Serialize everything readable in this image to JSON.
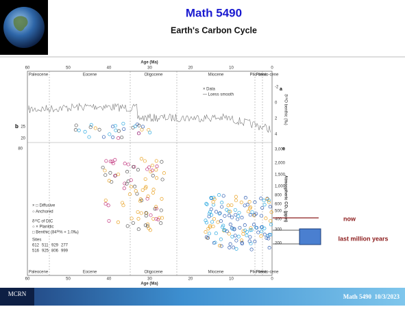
{
  "header": {
    "title": "Math 5490",
    "subtitle": "Earth's Carbon Cycle"
  },
  "figure": {
    "x_label": "Age (Ma)",
    "x_ticks": [
      "60",
      "50",
      "40",
      "30",
      "20",
      "10",
      "0"
    ],
    "epochs": [
      "Paleocene",
      "Eocene",
      "Oligocene",
      "Miocene",
      "Plio-cene",
      "Pleisto-cene"
    ],
    "panel_labels": [
      "a",
      "b",
      "e"
    ],
    "top_legend": [
      "× Data",
      "— Loess smooth"
    ],
    "top_y_label": "δ¹⁸O benthic (‰)",
    "top_y_ticks": [
      "-2",
      "0",
      "2",
      "4"
    ],
    "b_ticks": [
      "25",
      "20"
    ],
    "left_tick": "80",
    "co2_label": "Atmospheric CO₂ (ppm)",
    "co2_ticks": [
      "3,000",
      "2,000",
      "1,500",
      "1,000",
      "800",
      "600",
      "500",
      "400",
      "300",
      "200"
    ],
    "legend": [
      "× □ Diffusive",
      "○ Anchored",
      "δ¹³C of DIC",
      "○ × Planktic",
      "□ Benthic (84ᵗʰ% + 1.0‰)",
      "Sites"
    ],
    "sites_row1": [
      "612",
      "511",
      "929",
      "277"
    ],
    "sites_row2": [
      "516",
      "925",
      "806",
      "999"
    ]
  },
  "annotations": {
    "now": "now",
    "range": "last million years"
  },
  "footer": {
    "logo": "MCRN",
    "text": "Math 5490  10/3/2023"
  }
}
